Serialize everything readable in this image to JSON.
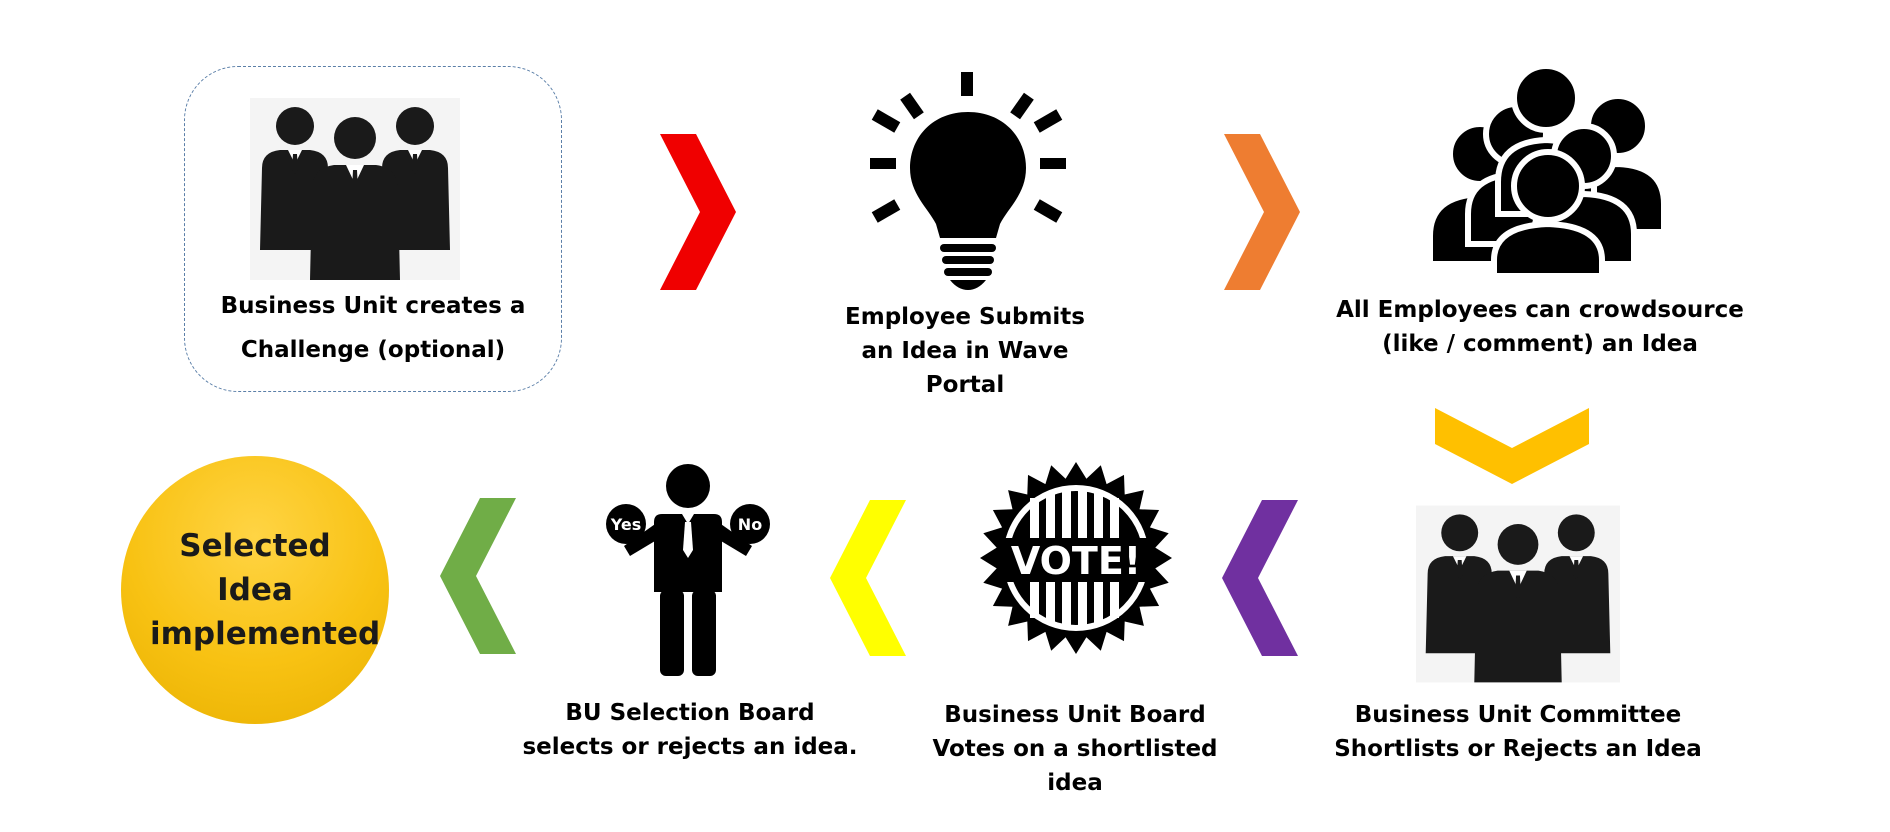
{
  "steps": {
    "challenge": "Business Unit creates a Challenge (optional)",
    "submit": "Employee Submits an Idea in Wave Portal",
    "crowdsource": "All Employees can crowdsource (like / comment) an Idea",
    "shortlist": "Business Unit Committee Shortlists or Rejects an Idea",
    "vote": "Business Unit Board Votes on a shortlisted idea",
    "select": "BU Selection Board selects or rejects an idea.",
    "final": "Selected Idea implemented"
  },
  "icon_text": {
    "vote": "VOTE!",
    "yes": "Yes",
    "no": "No"
  },
  "colors": {
    "arrow_1": "#f00000",
    "arrow_2": "#ee7d31",
    "arrow_3": "#ffc000",
    "arrow_4": "#7030a0",
    "arrow_5": "#ffff00",
    "arrow_6": "#70ad47",
    "final_circle": "#f8c213"
  }
}
